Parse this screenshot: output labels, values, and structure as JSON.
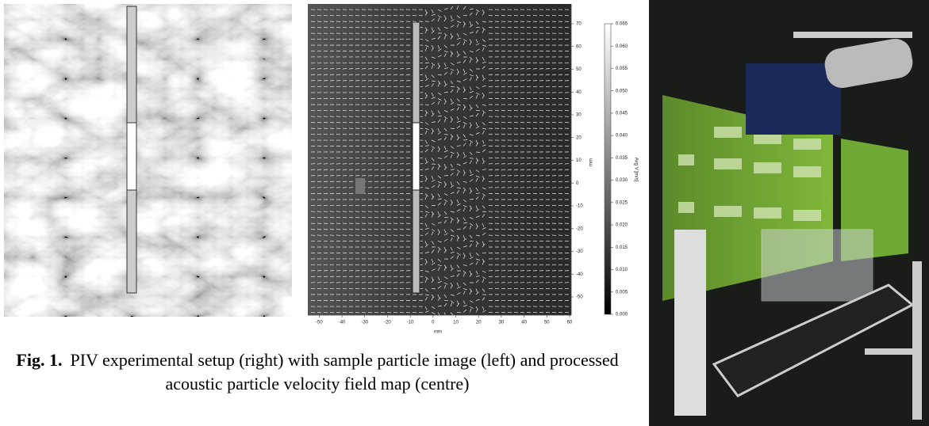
{
  "figure": {
    "center_plot": {
      "xlabel": "mm",
      "ylabel": "mm",
      "xlim": [
        -55,
        60.7
      ],
      "ylim": [
        -58,
        78.7
      ],
      "xticks": [
        -50,
        -40,
        -30,
        -20,
        -10,
        0,
        10,
        20,
        30,
        40,
        50,
        60
      ],
      "yticks": [
        70,
        60,
        50,
        40,
        30,
        20,
        10,
        0,
        -10,
        -20,
        -30,
        -40,
        -50
      ]
    },
    "colorbar": {
      "label": "Avg V [m/s]",
      "lim": [
        0,
        0.065
      ],
      "ticks": [
        0.065,
        {
          "value": 0.06,
          "label": "0.060"
        },
        0.055,
        {
          "value": 0.05,
          "label": "0.050"
        },
        0.045,
        {
          "value": 0.04,
          "label": "0.040"
        },
        0.035,
        {
          "value": 0.03,
          "label": "0.030"
        },
        0.025,
        {
          "value": 0.02,
          "label": "0.020"
        },
        0.015,
        {
          "value": 0.01,
          "label": "0.010"
        },
        0.005,
        {
          "value": 0,
          "label": "0.000"
        }
      ]
    }
  },
  "caption": {
    "label": "Fig. 1.",
    "text": "PIV experimental setup (right) with sample particle image (left) and processed acoustic particle velocity field map (centre)"
  }
}
